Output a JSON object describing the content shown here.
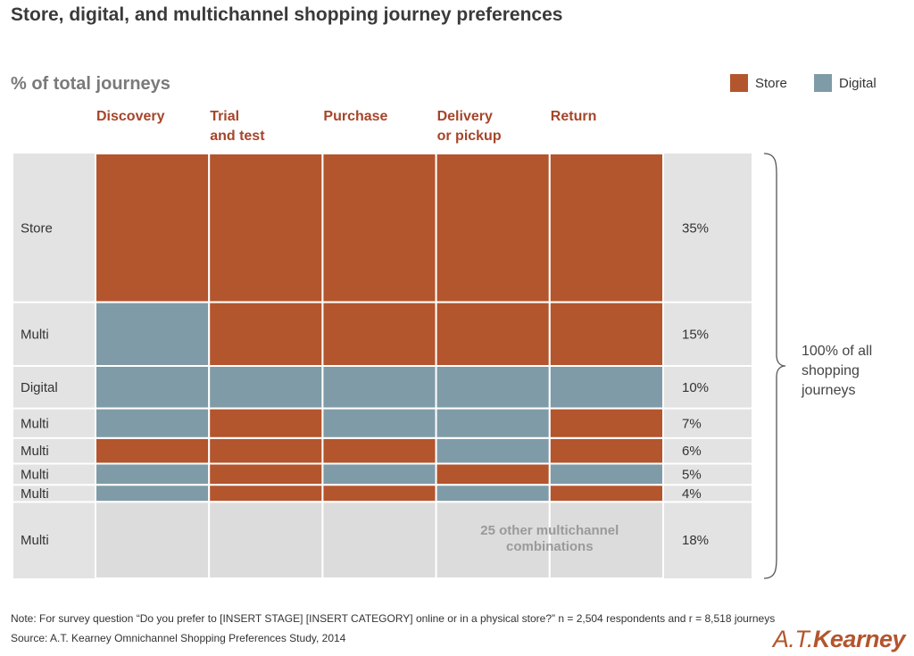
{
  "title": "Store, digital, and multichannel shopping journey preferences",
  "legend": [
    {
      "label": "Store",
      "color": "#b3552d"
    },
    {
      "label": "Digital",
      "color": "#7f9ba7"
    }
  ],
  "colors": {
    "store": "#b3552d",
    "digital": "#7f9ba7",
    "other": "#dcdcdc",
    "panel": "#e3e3e3",
    "stage_text": "#a5452a"
  },
  "chart_data": {
    "type": "mosaic",
    "title": "Store, digital, and multichannel shopping journey preferences",
    "ylabel": "% of total journeys",
    "stages": [
      "Discovery",
      "Trial and test",
      "Purchase",
      "Delivery or pickup",
      "Return"
    ],
    "stage_labels": [
      [
        "Discovery"
      ],
      [
        "Trial",
        "and test"
      ],
      [
        "Purchase"
      ],
      [
        "Delivery",
        "or pickup"
      ],
      [
        "Return"
      ]
    ],
    "rows": [
      {
        "label": "Store",
        "percent": 35,
        "pct_label": "35%",
        "channels": [
          "S",
          "S",
          "S",
          "S",
          "S"
        ]
      },
      {
        "label": "Multi",
        "percent": 15,
        "pct_label": "15%",
        "channels": [
          "D",
          "S",
          "S",
          "S",
          "S"
        ]
      },
      {
        "label": "Digital",
        "percent": 10,
        "pct_label": "10%",
        "channels": [
          "D",
          "D",
          "D",
          "D",
          "D"
        ]
      },
      {
        "label": "Multi",
        "percent": 7,
        "pct_label": "7%",
        "channels": [
          "D",
          "S",
          "D",
          "D",
          "S"
        ]
      },
      {
        "label": "Multi",
        "percent": 6,
        "pct_label": "6%",
        "channels": [
          "S",
          "S",
          "S",
          "D",
          "S"
        ]
      },
      {
        "label": "Multi",
        "percent": 5,
        "pct_label": "5%",
        "channels": [
          "D",
          "S",
          "D",
          "S",
          "D"
        ]
      },
      {
        "label": "Multi",
        "percent": 4,
        "pct_label": "4%",
        "channels": [
          "D",
          "S",
          "S",
          "D",
          "S"
        ]
      },
      {
        "label": "Multi",
        "percent": 18,
        "pct_label": "18%",
        "channels": [
          "O",
          "O",
          "O",
          "O",
          "O"
        ]
      }
    ],
    "other_note_lines": [
      "25 other multichannel",
      "combinations"
    ],
    "brace_label_lines": [
      "100% of all",
      "shopping",
      "journeys"
    ]
  },
  "note": "Note: For survey question “Do you prefer to [INSERT STAGE] [INSERT CATEGORY] online or in a physical store?” n = 2,504 respondents and r = 8,518 journeys",
  "source": "Source: A.T. Kearney Omnichannel Shopping Preferences Study, 2014",
  "brand": {
    "prefix": "A.T.",
    "name": "Kearney"
  }
}
